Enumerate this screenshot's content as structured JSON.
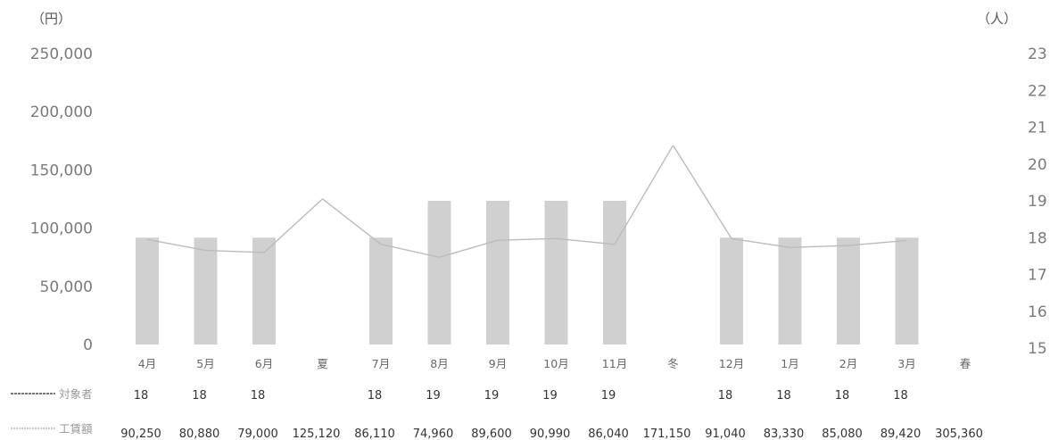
{
  "chart_data": {
    "type": "bar",
    "units": {
      "left": "（円）",
      "right": "（人）"
    },
    "left_axis": {
      "ylim": [
        0,
        250000
      ],
      "ticks": [
        "0",
        "50,000",
        "100,000",
        "150,000",
        "200,000",
        "250,000"
      ]
    },
    "right_axis": {
      "ylim": [
        15,
        23
      ],
      "ticks": [
        "15",
        "16",
        "17",
        "18",
        "19",
        "20",
        "21",
        "22",
        "23"
      ]
    },
    "categories": [
      "4月",
      "5月",
      "6月",
      "夏",
      "7月",
      "8月",
      "9月",
      "10月",
      "11月",
      "冬",
      "12月",
      "1月",
      "2月",
      "3月",
      "春"
    ],
    "series": [
      {
        "name": "対象者",
        "type": "bar",
        "axis": "right",
        "values": [
          18,
          18,
          18,
          null,
          18,
          19,
          19,
          19,
          19,
          null,
          18,
          18,
          18,
          18,
          null
        ],
        "labels": [
          "18",
          "18",
          "18",
          "",
          "18",
          "19",
          "19",
          "19",
          "19",
          "",
          "18",
          "18",
          "18",
          "18",
          ""
        ],
        "color": "#d0d0d0"
      },
      {
        "name": "工賃額",
        "type": "line",
        "axis": "left",
        "values": [
          90250,
          80880,
          79000,
          125120,
          86110,
          74960,
          89600,
          90990,
          86040,
          171150,
          91040,
          83330,
          85080,
          89420,
          305360
        ],
        "labels": [
          "90,250",
          "80,880",
          "79,000",
          "125,120",
          "86,110",
          "74,960",
          "89,600",
          "90,990",
          "86,040",
          "171,150",
          "91,040",
          "83,330",
          "85,080",
          "89,420",
          "305,360"
        ],
        "color": "#bbbbbb"
      }
    ],
    "legend": "table-bottom",
    "grid": false
  }
}
